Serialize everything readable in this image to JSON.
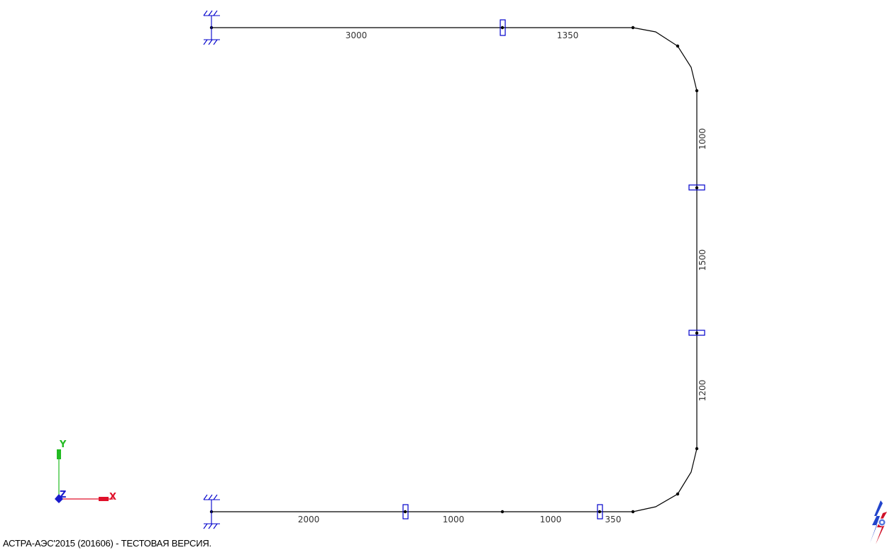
{
  "status_text": "АСТРА-АЭС'2015 (201606) - ТЕСТОВАЯ ВЕРСИЯ.",
  "dimensions": {
    "top_left": "3000",
    "top_right": "1350",
    "right_upper": "1000",
    "right_middle": "1500",
    "right_lower": "1200",
    "bottom_1": "2000",
    "bottom_2": "1000",
    "bottom_3": "1000",
    "bottom_4": "350"
  },
  "axes": {
    "x_label": "X",
    "y_label": "Y",
    "z_label": "Z"
  },
  "icons": {
    "anchor_support": "fixed-support-icon",
    "guide_support": "guide-support-icon",
    "node": "node-point-icon",
    "logo": "astra-logo-icon"
  },
  "colors": {
    "pipe": "#000000",
    "support": "#0000cc",
    "axis_x": "#e0102a",
    "axis_y": "#22bb22",
    "axis_z": "#1a1acc",
    "dim_text": "#333333"
  }
}
